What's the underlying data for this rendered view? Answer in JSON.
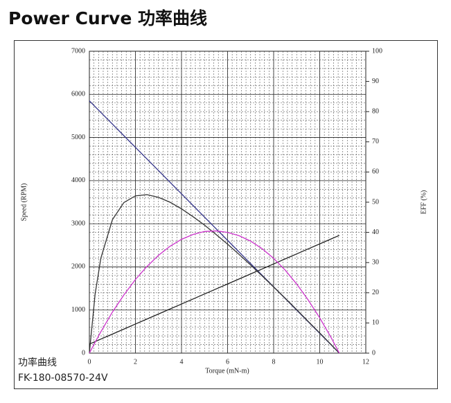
{
  "chart_data": {
    "type": "line",
    "title": "Power Curve 功率曲线",
    "annotations": [
      "功率曲线",
      "FK-180-08570-24V"
    ],
    "x_label": "Torque (mN-m)",
    "y_label": "Speed (RPM)",
    "y2_label": "EFF (%)",
    "x": [
      0,
      0.25,
      0.5,
      1,
      1.5,
      2,
      2.5,
      3,
      3.5,
      4,
      4.5,
      5,
      5.5,
      6,
      6.5,
      7,
      7.5,
      8,
      8.5,
      9,
      9.5,
      10,
      10.5,
      10.85
    ],
    "series": [
      {
        "color": "#34348a",
        "values": [
          5850,
          5715,
          5580,
          5311,
          5041,
          4772,
          4502,
          4233,
          3963,
          3693,
          3424,
          3154,
          2885,
          2615,
          2345,
          2076,
          1806,
          1537,
          1267,
          997,
          728,
          458,
          189,
          0
        ]
      },
      {
        "color": "#222222",
        "values": [
          210,
          268,
          326,
          442,
          558,
          675,
          791,
          907,
          1023,
          1139,
          1255,
          1372,
          1488,
          1604,
          1720,
          1836,
          1952,
          2068,
          2185,
          2301,
          2417,
          2533,
          2649,
          2730
        ]
      },
      {
        "color": "#333333",
        "axis": "y2",
        "values": [
          0,
          19.6,
          31.5,
          44.2,
          49.9,
          52.1,
          52.5,
          51.6,
          50.0,
          47.8,
          45.2,
          42.4,
          39.3,
          36.1,
          32.7,
          29.2,
          25.6,
          21.9,
          18.2,
          14.4,
          10.5,
          6.7,
          2.8,
          0
        ]
      },
      {
        "color": "#cc33cc",
        "axis": "y2",
        "values": [
          0,
          3.6,
          7.1,
          13.6,
          19.3,
          24.4,
          28.7,
          32.4,
          35.4,
          37.7,
          39.3,
          40.3,
          40.5,
          40.0,
          38.9,
          37.1,
          34.6,
          31.4,
          27.5,
          22.9,
          17.6,
          11.7,
          5.1,
          0
        ]
      }
    ],
    "xlim": [
      0,
      12
    ],
    "xticks": [
      0,
      2,
      4,
      6,
      8,
      10,
      12
    ],
    "ylim": [
      0,
      7000
    ],
    "yticks": [
      0,
      1000,
      2000,
      3000,
      4000,
      5000,
      6000,
      7000
    ],
    "y2lim": [
      0,
      100
    ],
    "y2ticks": [
      0,
      10,
      20,
      30,
      40,
      50,
      60,
      70,
      80,
      90,
      100
    ],
    "grid": true
  }
}
